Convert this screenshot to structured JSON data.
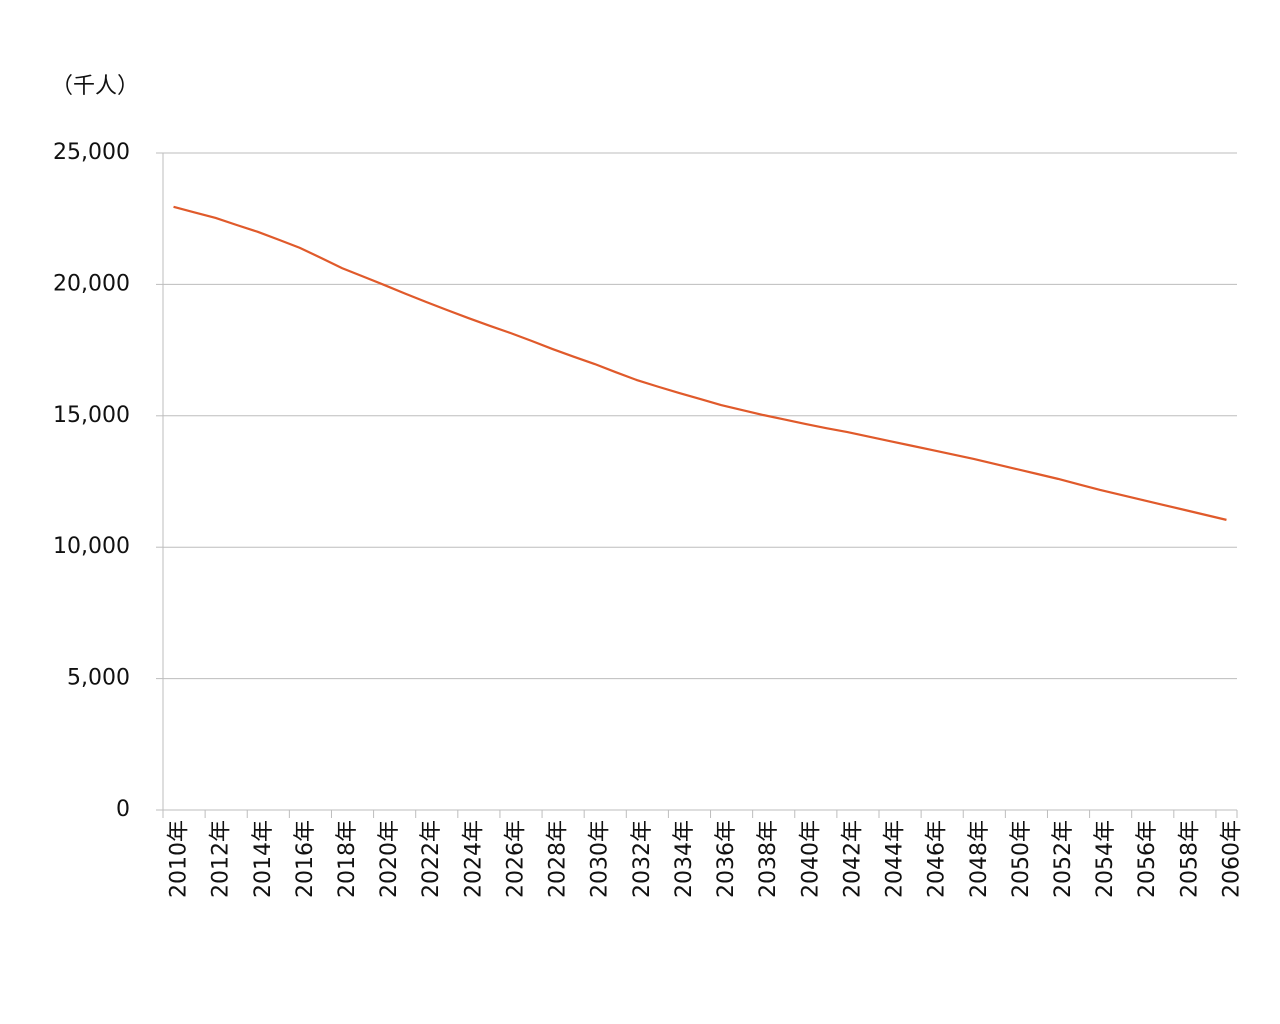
{
  "chart_data": {
    "type": "line",
    "y_label": "（千人）",
    "categories": [
      "2010年",
      null,
      "2012年",
      null,
      "2014年",
      null,
      "2016年",
      null,
      "2018年",
      null,
      "2020年",
      null,
      "2022年",
      null,
      "2024年",
      null,
      "2026年",
      null,
      "2028年",
      null,
      "2030年",
      null,
      "2032年",
      null,
      "2034年",
      null,
      "2036年",
      null,
      "2038年",
      null,
      "2040年",
      null,
      "2042年",
      null,
      "2044年",
      null,
      "2046年",
      null,
      "2048年",
      null,
      "2050年",
      null,
      "2052年",
      null,
      "2054年",
      null,
      "2056年",
      null,
      "2058年",
      null,
      "2060年"
    ],
    "values": [
      22950,
      22740,
      22530,
      22260,
      22000,
      21700,
      21390,
      21010,
      20620,
      20300,
      19980,
      19650,
      19330,
      19020,
      18720,
      18430,
      18150,
      17850,
      17540,
      17250,
      16970,
      16660,
      16360,
      16110,
      15870,
      15640,
      15410,
      15220,
      15030,
      14860,
      14690,
      14530,
      14380,
      14210,
      14040,
      13870,
      13700,
      13530,
      13360,
      13170,
      12980,
      12790,
      12600,
      12390,
      12180,
      11990,
      11800,
      11610,
      11420,
      11230,
      11040
    ],
    "color": "#e05a2b",
    "ylim": [
      0,
      25000
    ],
    "yticks": [
      0,
      {
        "value": 5000,
        "label": "5,000"
      },
      {
        "value": 10000,
        "label": "10,000"
      },
      {
        "value": 15000,
        "label": "15,000"
      },
      {
        "value": 20000,
        "label": "20,000"
      },
      {
        "value": 25000,
        "label": "25,000"
      }
    ],
    "grid": true
  }
}
